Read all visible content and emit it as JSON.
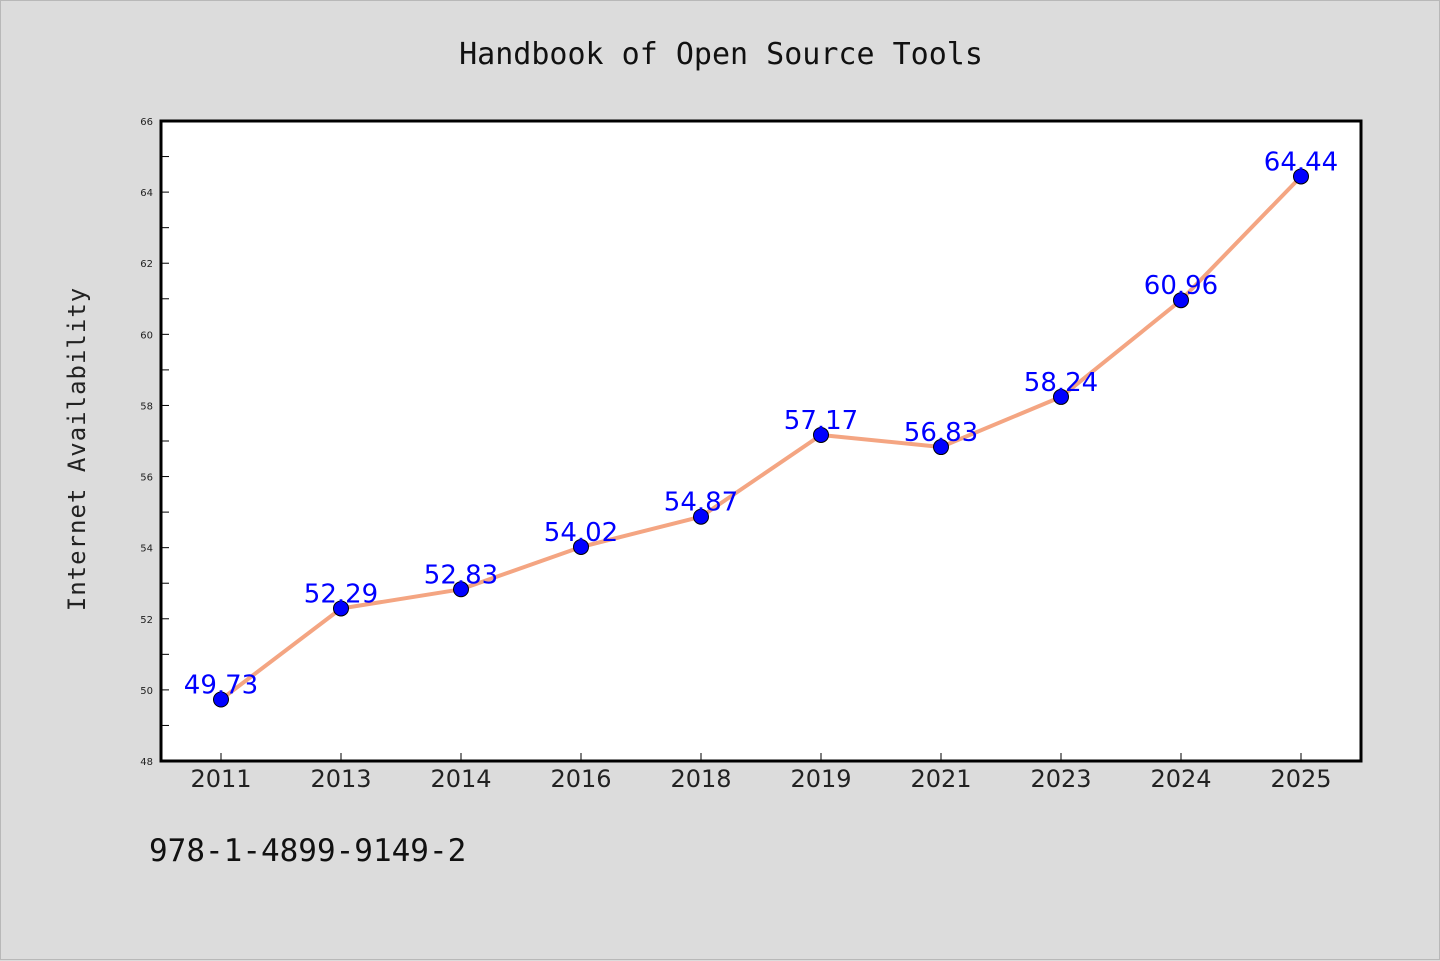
{
  "colors": {
    "background": "#dcdcdc",
    "plot_background": "#ffffff",
    "line": "#f4a582",
    "marker": "#0000ff",
    "data_label": "#0000ff"
  },
  "footer": {
    "isbn": "978-1-4899-9149-2"
  },
  "chart_data": {
    "type": "line",
    "title": "Handbook of Open Source Tools",
    "xlabel": "",
    "ylabel": "Internet Availability",
    "categories": [
      "2011",
      "2013",
      "2014",
      "2016",
      "2018",
      "2019",
      "2021",
      "2023",
      "2024",
      "2025"
    ],
    "values": [
      49.73,
      52.29,
      52.83,
      54.02,
      54.87,
      57.17,
      56.83,
      58.24,
      60.96,
      64.44
    ],
    "ylim": [
      48,
      66
    ],
    "yticks": [
      48,
      50,
      52,
      54,
      56,
      58,
      60,
      62,
      64,
      66
    ],
    "grid": false,
    "legend": "none",
    "data_labels": true
  }
}
